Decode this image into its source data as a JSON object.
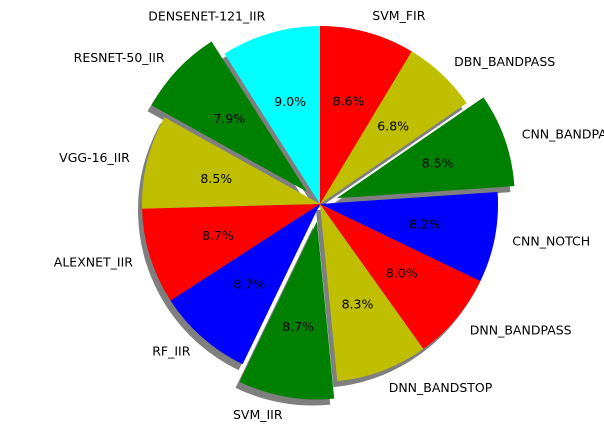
{
  "chart_data": {
    "type": "pie",
    "start_angle_deg": 90,
    "direction": "counterclockwise",
    "shadow": true,
    "slices": [
      {
        "label": "DENSENET-121_IIR",
        "value": 9.0,
        "pct_label": "9.0%",
        "color": "#00ffff",
        "explode": false
      },
      {
        "label": "RESNET-50_IIR",
        "value": 7.9,
        "pct_label": "7.9%",
        "color": "#008000",
        "explode": true
      },
      {
        "label": "VGG-16_IIR",
        "value": 8.5,
        "pct_label": "8.5%",
        "color": "#bfbf00",
        "explode": false
      },
      {
        "label": "ALEXNET_IIR",
        "value": 8.7,
        "pct_label": "8.7%",
        "color": "#ff0000",
        "explode": false
      },
      {
        "label": "RF_IIR",
        "value": 8.7,
        "pct_label": "8.7%",
        "color": "#0000ff",
        "explode": false
      },
      {
        "label": "SVM_IIR",
        "value": 8.7,
        "pct_label": "8.7%",
        "color": "#008000",
        "explode": true
      },
      {
        "label": "DNN_BANDSTOP",
        "value": 8.3,
        "pct_label": "8.3%",
        "color": "#bfbf00",
        "explode": false
      },
      {
        "label": "DNN_BANDPASS",
        "value": 8.0,
        "pct_label": "8.0%",
        "color": "#ff0000",
        "explode": false
      },
      {
        "label": "CNN_NOTCH",
        "value": 8.2,
        "pct_label": "8.2%",
        "color": "#0000ff",
        "explode": false
      },
      {
        "label": "CNN_BANDPASS",
        "value": 8.5,
        "pct_label": "8.5%",
        "color": "#008000",
        "explode": true
      },
      {
        "label": "DBN_BANDPASS",
        "value": 6.8,
        "pct_label": "6.8%",
        "color": "#bfbf00",
        "explode": false
      },
      {
        "label": "SVM_FIR",
        "value": 8.6,
        "pct_label": "8.6%",
        "color": "#ff0000",
        "explode": false
      }
    ]
  }
}
